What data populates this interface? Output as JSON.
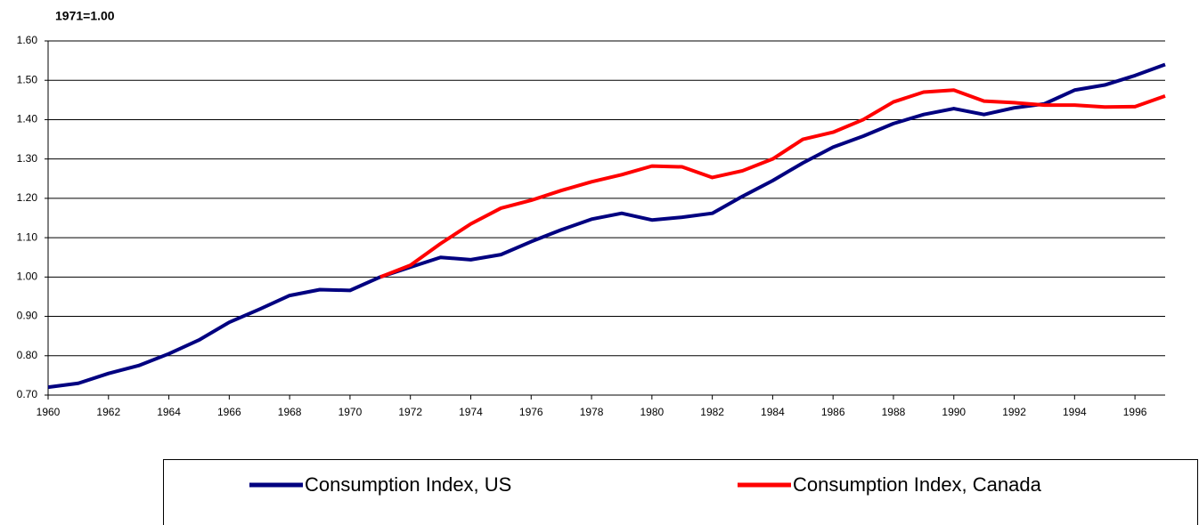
{
  "chart_data": {
    "type": "line",
    "ylabel": "1971=1.00",
    "x": [
      1960,
      1961,
      1962,
      1963,
      1964,
      1965,
      1966,
      1967,
      1968,
      1969,
      1970,
      1971,
      1972,
      1973,
      1974,
      1975,
      1976,
      1977,
      1978,
      1979,
      1980,
      1981,
      1982,
      1983,
      1984,
      1985,
      1986,
      1987,
      1988,
      1989,
      1990,
      1991,
      1992,
      1993,
      1994,
      1995,
      1996,
      1997
    ],
    "series": [
      {
        "name": "Consumption Index, US",
        "color": "#000080",
        "values": [
          0.72,
          0.73,
          0.755,
          0.775,
          0.805,
          0.84,
          0.885,
          0.918,
          0.953,
          0.968,
          0.966,
          1.0,
          1.025,
          1.05,
          1.044,
          1.057,
          1.09,
          1.12,
          1.147,
          1.162,
          1.145,
          1.152,
          1.162,
          1.205,
          1.245,
          1.29,
          1.33,
          1.358,
          1.39,
          1.413,
          1.428,
          1.413,
          1.43,
          1.44,
          1.475,
          1.488,
          1.512,
          1.54
        ]
      },
      {
        "name": "Consumption Index, Canada",
        "color": "#ff0000",
        "values": [
          null,
          null,
          null,
          null,
          null,
          null,
          null,
          null,
          null,
          null,
          null,
          1.0,
          1.03,
          1.085,
          1.135,
          1.175,
          1.195,
          1.22,
          1.242,
          1.26,
          1.282,
          1.28,
          1.253,
          1.27,
          1.3,
          1.35,
          1.368,
          1.4,
          1.445,
          1.47,
          1.475,
          1.447,
          1.443,
          1.437,
          1.437,
          1.432,
          1.433,
          1.46
        ]
      }
    ],
    "xlim": [
      1960,
      1997
    ],
    "xticks": [
      1960,
      1962,
      1964,
      1966,
      1968,
      1970,
      1972,
      1974,
      1976,
      1978,
      1980,
      1982,
      1984,
      1986,
      1988,
      1990,
      1992,
      1994,
      1996
    ],
    "ylim": [
      0.7,
      1.6
    ],
    "yticks": [
      {
        "value": 0.7,
        "label": "0.70"
      },
      {
        "value": 0.8,
        "label": "0.80"
      },
      {
        "value": 0.9,
        "label": "0.90"
      },
      {
        "value": 1.0,
        "label": "1.00"
      },
      {
        "value": 1.1,
        "label": "1.10"
      },
      {
        "value": 1.2,
        "label": "1.20"
      },
      {
        "value": 1.3,
        "label": "1.30"
      },
      {
        "value": 1.4,
        "label": "1.40"
      },
      {
        "value": 1.5,
        "label": "1.50"
      },
      {
        "value": 1.6,
        "label": "1.60"
      }
    ],
    "grid": true,
    "legend": "bottom"
  }
}
